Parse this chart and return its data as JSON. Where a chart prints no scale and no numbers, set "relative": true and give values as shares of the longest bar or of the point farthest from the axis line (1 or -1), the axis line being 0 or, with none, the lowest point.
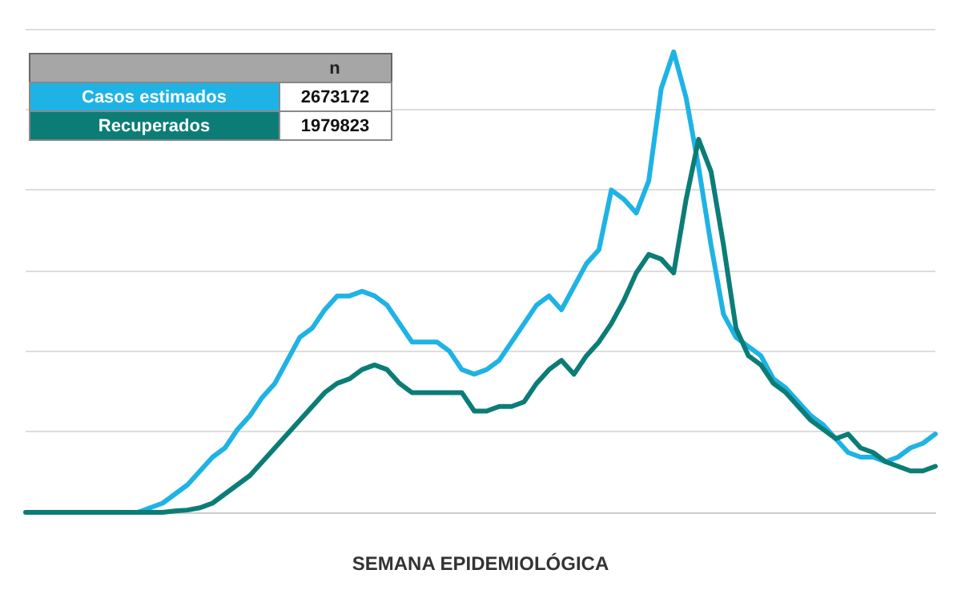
{
  "chart_data": {
    "type": "line",
    "relative": true,
    "xlabel": "SEMANA EPIDEMIOLÓGICA",
    "categories": [
      null,
      null,
      null,
      null,
      null,
      null,
      null,
      null,
      null,
      null,
      null,
      null,
      null,
      null,
      null,
      null,
      null,
      null,
      null,
      null,
      null,
      null,
      null,
      null,
      null,
      null,
      null,
      null,
      null,
      null,
      null,
      null,
      null,
      null,
      null,
      null,
      null,
      null,
      null,
      null,
      null,
      null,
      null,
      null,
      null,
      null,
      null,
      null,
      null,
      null,
      null,
      null,
      null,
      null,
      null,
      null,
      null,
      null,
      null,
      null,
      null,
      null,
      null,
      null,
      null,
      null,
      null,
      null,
      null,
      null,
      null,
      null,
      null,
      null
    ],
    "series": [
      {
        "name": "Casos estimados",
        "color": "#1fb3e5",
        "values": [
          null,
          null,
          null,
          null,
          null,
          null,
          null,
          null,
          0,
          0,
          0.01,
          0.02,
          0.04,
          0.06,
          0.09,
          0.12,
          0.14,
          0.18,
          0.21,
          0.25,
          0.28,
          0.33,
          0.38,
          0.4,
          0.44,
          0.47,
          0.47,
          0.48,
          0.47,
          0.45,
          0.41,
          0.37,
          0.37,
          0.37,
          0.35,
          0.31,
          0.3,
          0.31,
          0.33,
          0.37,
          0.41,
          0.45,
          0.47,
          0.44,
          0.49,
          0.54,
          0.57,
          0.7,
          0.68,
          0.65,
          0.72,
          0.92,
          1.0,
          0.9,
          0.75,
          0.58,
          0.43,
          0.38,
          0.36,
          0.34,
          0.29,
          0.27,
          0.24,
          0.21,
          0.19,
          0.16,
          0.13,
          0.12,
          0.12,
          0.11,
          0.12,
          0.14,
          0.15,
          0.17
        ]
      },
      {
        "name": "Recuperados",
        "color": "#0b7d76",
        "values": [
          0,
          0,
          0,
          0,
          0,
          0,
          0,
          0,
          0,
          0,
          0,
          0,
          0.003,
          0.005,
          0.01,
          0.02,
          0.04,
          0.06,
          0.08,
          0.11,
          0.14,
          0.17,
          0.2,
          0.23,
          0.26,
          0.28,
          0.29,
          0.31,
          0.32,
          0.31,
          0.28,
          0.26,
          0.26,
          0.26,
          0.26,
          0.26,
          0.22,
          0.22,
          0.23,
          0.23,
          0.24,
          0.28,
          0.31,
          0.33,
          0.3,
          0.34,
          0.37,
          0.41,
          0.46,
          0.52,
          0.56,
          0.55,
          0.52,
          0.68,
          0.81,
          0.74,
          0.58,
          0.4,
          0.34,
          0.32,
          0.28,
          0.26,
          0.23,
          0.2,
          0.18,
          0.16,
          0.17,
          0.14,
          0.13,
          0.11,
          0.1,
          0.09,
          0.09,
          0.1
        ]
      }
    ],
    "annotations": [
      "n",
      "2673172",
      "1979823"
    ],
    "legend": "top left",
    "grid": "y",
    "marker": "none",
    "line_style": "solid"
  }
}
